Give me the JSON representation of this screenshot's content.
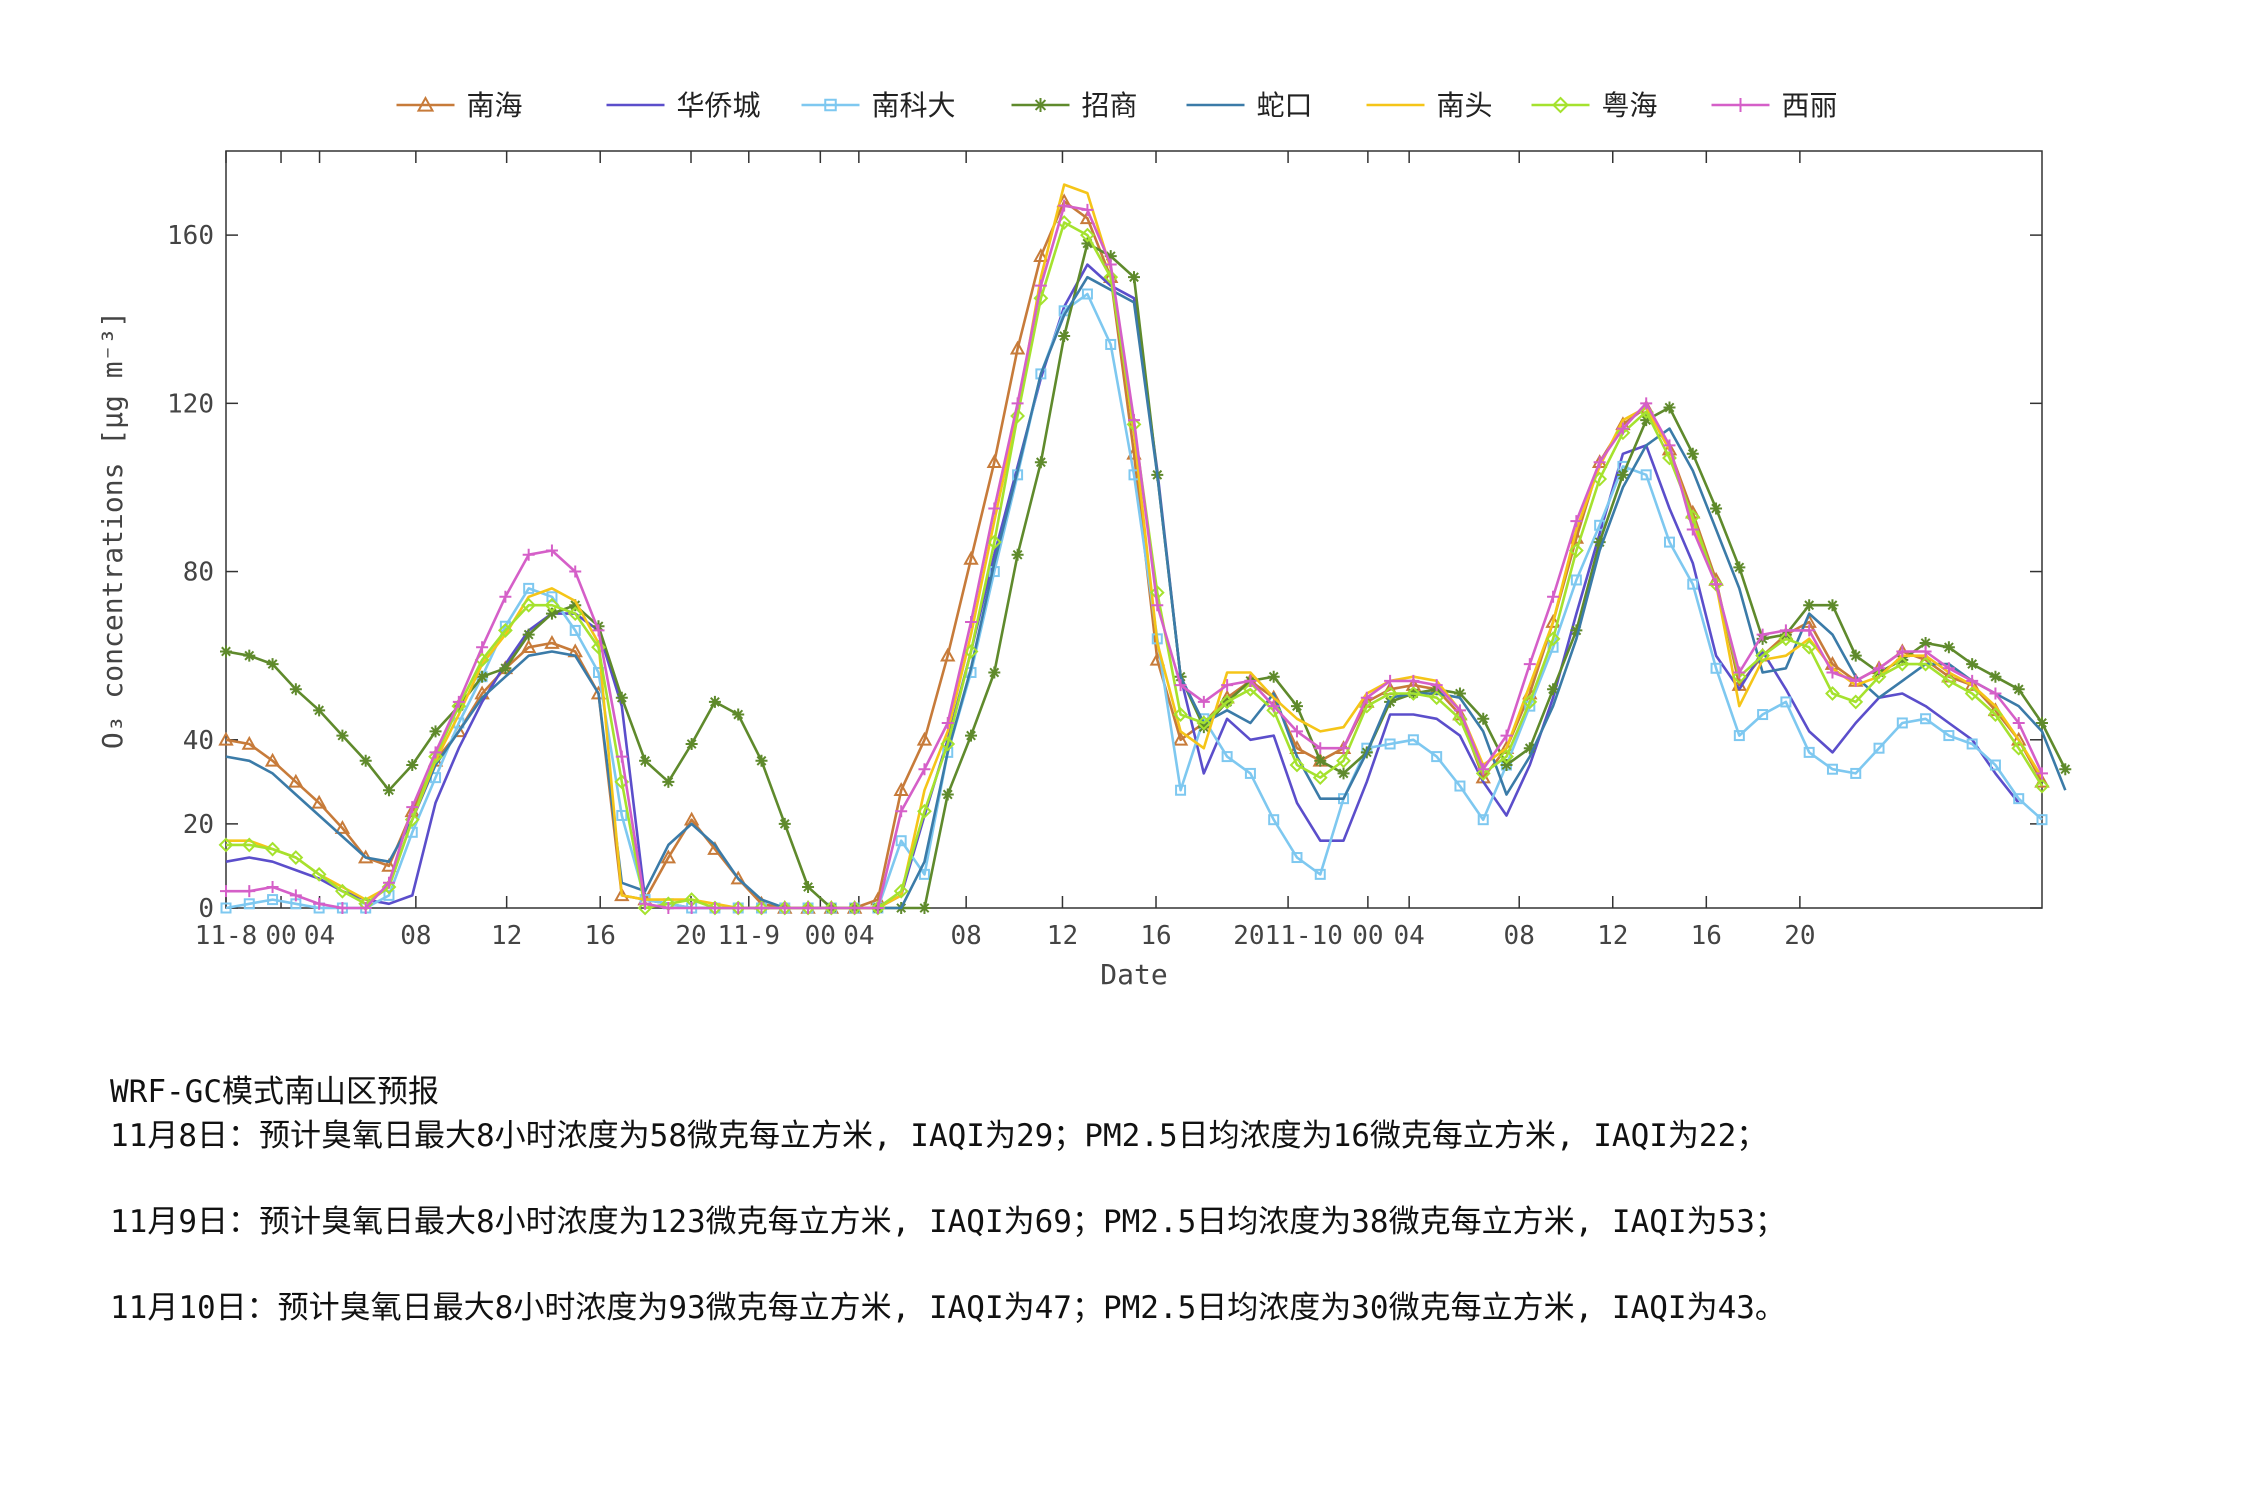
{
  "chart_data": {
    "type": "line",
    "xlabel": "Date",
    "ylabel": "O₃ concentrations [μg m⁻³]",
    "ylim": [
      0,
      180
    ],
    "yticks": [
      0,
      20,
      40,
      80,
      120,
      160
    ],
    "xlim": [
      0,
      66
    ],
    "xtick_labels": [
      {
        "x": 0,
        "label": "11-8"
      },
      {
        "x": 2,
        "label": "00"
      },
      {
        "x": 3.4,
        "label": "04"
      },
      {
        "x": 6.9,
        "label": "08"
      },
      {
        "x": 10.2,
        "label": "12"
      },
      {
        "x": 13.6,
        "label": "16"
      },
      {
        "x": 16.9,
        "label": "20"
      },
      {
        "x": 19,
        "label": "11-9"
      },
      {
        "x": 21.6,
        "label": "00"
      },
      {
        "x": 23,
        "label": "04"
      },
      {
        "x": 26.9,
        "label": "08"
      },
      {
        "x": 30.4,
        "label": "12"
      },
      {
        "x": 33.8,
        "label": "16"
      },
      {
        "x": 38.6,
        "label": "2011-10"
      },
      {
        "x": 41.5,
        "label": "00"
      },
      {
        "x": 43,
        "label": "04"
      },
      {
        "x": 47,
        "label": "08"
      },
      {
        "x": 50.4,
        "label": "12"
      },
      {
        "x": 53.8,
        "label": "16"
      },
      {
        "x": 57.2,
        "label": "20"
      }
    ],
    "legend_position": "top-center",
    "grid": false,
    "series": [
      {
        "name": "南海",
        "color": "#C77B3A",
        "marker": "triangle",
        "values": [
          40,
          39,
          35,
          30,
          25,
          19,
          12,
          10,
          23,
          35,
          42,
          51,
          57,
          62,
          63,
          61,
          51,
          3,
          2,
          12,
          21,
          14,
          7,
          1,
          0,
          0,
          0,
          0,
          2,
          28,
          40,
          60,
          83,
          106,
          133,
          155,
          168,
          164,
          150,
          108,
          59,
          40,
          44,
          50,
          54,
          50,
          38,
          35,
          38,
          49,
          52,
          53,
          52,
          46,
          31,
          38,
          51,
          68,
          88,
          106,
          115,
          119,
          109,
          94,
          78,
          53,
          60,
          65,
          68,
          58,
          54,
          57,
          61,
          59,
          55,
          53,
          47,
          40,
          30
        ]
      },
      {
        "name": "华侨城",
        "color": "#5B4ECB",
        "marker": "none",
        "values": [
          11,
          12,
          11,
          9,
          7,
          4,
          2,
          1,
          3,
          25,
          38,
          49,
          58,
          66,
          70,
          70,
          66,
          48,
          2,
          1,
          0,
          0,
          0,
          0,
          0,
          0,
          0,
          0,
          0,
          3,
          22,
          40,
          61,
          84,
          105,
          126,
          143,
          153,
          148,
          145,
          104,
          55,
          32,
          45,
          40,
          41,
          25,
          16,
          16,
          30,
          46,
          46,
          45,
          41,
          30,
          22,
          34,
          50,
          70,
          89,
          108,
          110,
          95,
          82,
          60,
          52,
          61,
          52,
          42,
          37,
          44,
          50,
          51,
          48,
          44,
          40,
          32,
          25
        ]
      },
      {
        "name": "南科大",
        "color": "#7EC8F0",
        "marker": "square",
        "values": [
          0,
          1,
          2,
          1,
          0,
          0,
          0,
          3,
          18,
          31,
          44,
          55,
          67,
          76,
          74,
          66,
          56,
          22,
          2,
          1,
          0,
          0,
          0,
          0,
          0,
          0,
          0,
          0,
          0,
          16,
          8,
          37,
          56,
          80,
          103,
          127,
          142,
          146,
          134,
          103,
          64,
          28,
          45,
          36,
          32,
          21,
          12,
          8,
          26,
          38,
          39,
          40,
          36,
          29,
          21,
          34,
          48,
          62,
          78,
          91,
          105,
          103,
          87,
          77,
          57,
          41,
          46,
          49,
          37,
          33,
          32,
          38,
          44,
          45,
          41,
          39,
          34,
          26,
          21
        ]
      },
      {
        "name": "招商",
        "color": "#5F8A2C",
        "marker": "star",
        "values": [
          61,
          60,
          58,
          52,
          47,
          41,
          35,
          28,
          34,
          42,
          48,
          55,
          57,
          65,
          70,
          72,
          67,
          50,
          35,
          30,
          39,
          49,
          46,
          35,
          20,
          5,
          0,
          0,
          0,
          0,
          0,
          27,
          41,
          56,
          84,
          106,
          136,
          158,
          155,
          150,
          103,
          55,
          43,
          49,
          54,
          55,
          48,
          35,
          32,
          37,
          49,
          51,
          52,
          51,
          45,
          34,
          38,
          52,
          66,
          87,
          103,
          116,
          119,
          108,
          95,
          81,
          64,
          65,
          72,
          72,
          60,
          56,
          59,
          63,
          62,
          58,
          55,
          52,
          44,
          33
        ]
      },
      {
        "name": "蛇口",
        "color": "#3B7BA8",
        "marker": "none",
        "values": [
          36,
          35,
          32,
          27,
          22,
          17,
          12,
          11,
          21,
          34,
          42,
          50,
          55,
          60,
          61,
          60,
          51,
          6,
          4,
          15,
          20,
          15,
          7,
          2,
          0,
          0,
          0,
          0,
          0,
          0,
          11,
          37,
          57,
          82,
          104,
          127,
          141,
          150,
          147,
          144,
          103,
          55,
          44,
          47,
          44,
          51,
          36,
          26,
          26,
          37,
          50,
          51,
          51,
          50,
          42,
          27,
          36,
          48,
          64,
          85,
          100,
          110,
          114,
          104,
          90,
          76,
          56,
          57,
          70,
          65,
          55,
          50,
          54,
          58,
          58,
          54,
          51,
          48,
          42,
          28
        ]
      },
      {
        "name": "南头",
        "color": "#F5C518",
        "marker": "none",
        "values": [
          16,
          16,
          14,
          12,
          8,
          5,
          2,
          5,
          21,
          35,
          46,
          58,
          65,
          74,
          76,
          73,
          63,
          3,
          2,
          2,
          2,
          1,
          0,
          0,
          0,
          0,
          0,
          0,
          0,
          3,
          28,
          42,
          65,
          92,
          118,
          150,
          172,
          170,
          152,
          113,
          63,
          42,
          38,
          56,
          56,
          50,
          45,
          42,
          43,
          51,
          54,
          55,
          54,
          47,
          34,
          38,
          53,
          68,
          90,
          105,
          116,
          119,
          109,
          92,
          77,
          48,
          59,
          60,
          64,
          57,
          53,
          55,
          60,
          60,
          56,
          53,
          48,
          40,
          31
        ]
      },
      {
        "name": "粤海",
        "color": "#A5E22E",
        "marker": "diamond",
        "values": [
          15,
          15,
          14,
          12,
          8,
          4,
          1,
          5,
          21,
          36,
          48,
          59,
          66,
          72,
          72,
          70,
          62,
          30,
          0,
          1,
          2,
          0,
          0,
          0,
          0,
          0,
          0,
          0,
          0,
          4,
          23,
          39,
          61,
          87,
          117,
          145,
          163,
          160,
          150,
          115,
          75,
          46,
          44,
          49,
          52,
          47,
          34,
          31,
          35,
          48,
          51,
          51,
          50,
          45,
          32,
          36,
          49,
          64,
          85,
          102,
          113,
          118,
          107,
          93,
          77,
          55,
          60,
          64,
          62,
          51,
          49,
          55,
          58,
          58,
          54,
          51,
          46,
          38,
          29
        ]
      },
      {
        "name": "西丽",
        "color": "#D55FC8",
        "marker": "plus",
        "values": [
          4,
          4,
          5,
          3,
          1,
          0,
          0,
          6,
          24,
          37,
          49,
          62,
          74,
          84,
          85,
          80,
          66,
          36,
          1,
          0,
          0,
          0,
          0,
          0,
          0,
          0,
          0,
          0,
          0,
          23,
          33,
          44,
          68,
          95,
          120,
          148,
          167,
          166,
          153,
          116,
          72,
          53,
          49,
          53,
          54,
          48,
          42,
          38,
          38,
          50,
          54,
          54,
          53,
          47,
          33,
          41,
          58,
          74,
          92,
          106,
          114,
          120,
          110,
          90,
          77,
          56,
          65,
          66,
          66,
          56,
          54,
          57,
          61,
          61,
          57,
          54,
          51,
          44,
          32
        ]
      }
    ]
  },
  "caption": {
    "title": "WRF-GC模式南山区预报",
    "lines": [
      "11月8日：预计臭氧日最大8小时浓度为58微克每立方米, IAQI为29；PM2.5日均浓度为16微克每立方米, IAQI为22；",
      "11月9日：预计臭氧日最大8小时浓度为123微克每立方米, IAQI为69；PM2.5日均浓度为38微克每立方米, IAQI为53；",
      "11月10日：预计臭氧日最大8小时浓度为93微克每立方米, IAQI为47；PM2.5日均浓度为30微克每立方米, IAQI为43。"
    ]
  }
}
